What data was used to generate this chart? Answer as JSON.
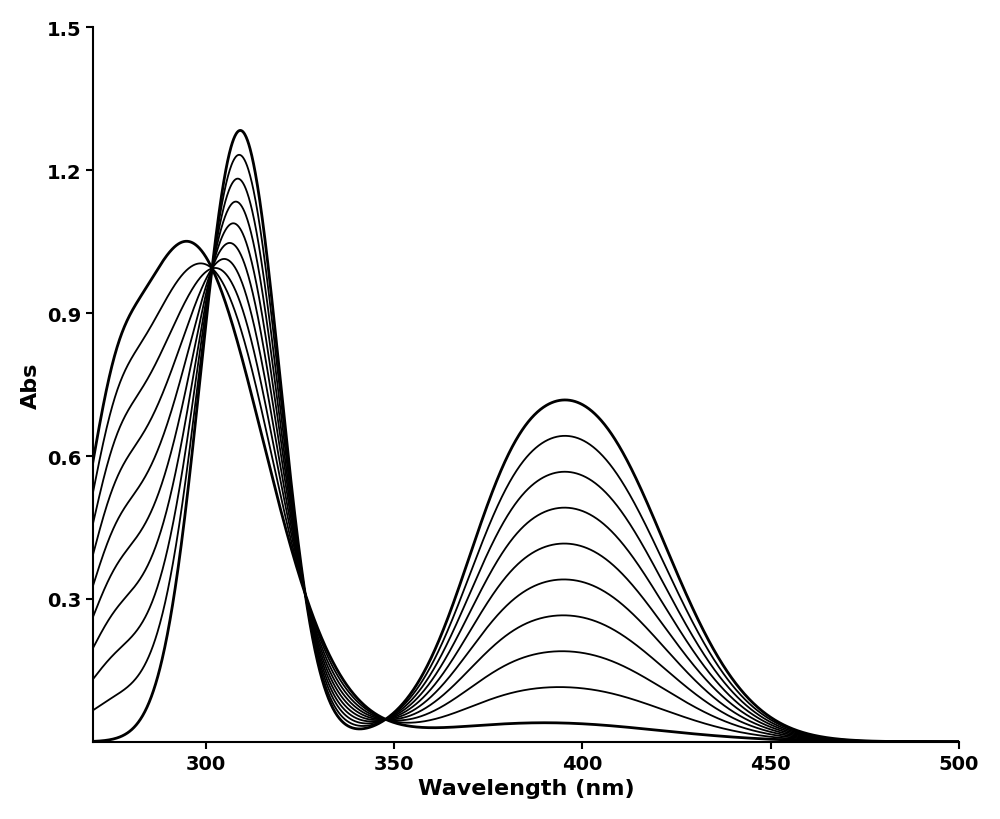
{
  "xlabel": "Wavelength (nm)",
  "ylabel": "Abs",
  "xlim": [
    270,
    500
  ],
  "ylim": [
    0,
    1.5
  ],
  "xticks": [
    300,
    350,
    400,
    450,
    500
  ],
  "yticks": [
    0.3,
    0.6,
    0.9,
    1.2,
    1.5
  ],
  "label_fontsize": 16,
  "tick_fontsize": 14,
  "line_color": "#000000",
  "background_color": "#ffffff",
  "n_curves": 10
}
